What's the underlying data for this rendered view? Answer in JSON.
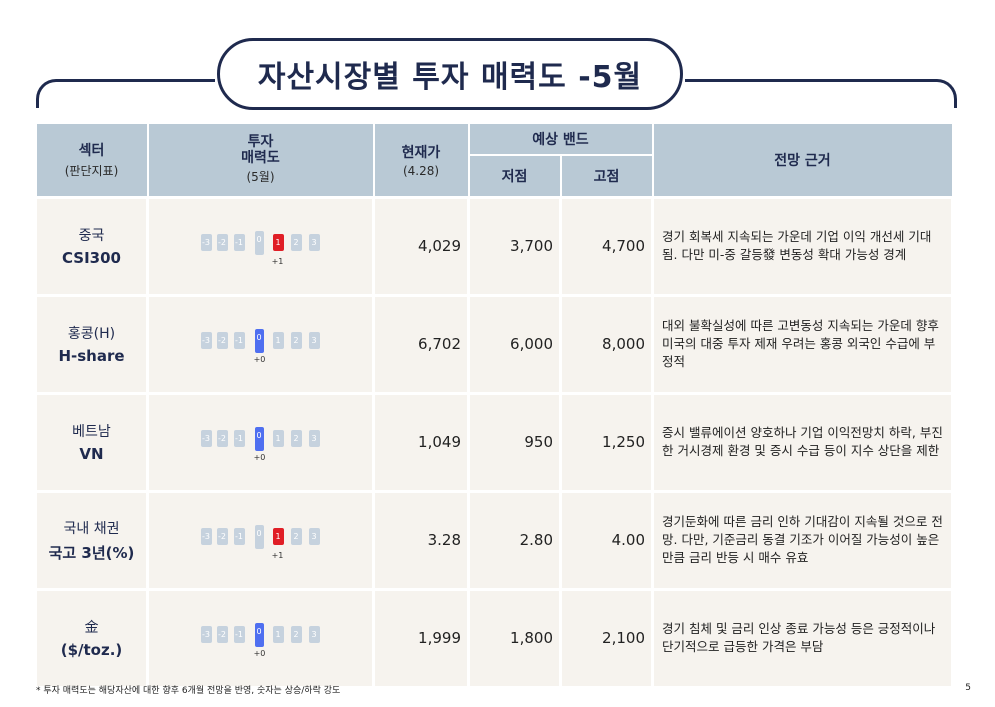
{
  "title": "자산시장별 투자 매력도 -5월",
  "header": {
    "sector": "섹터",
    "sector_sub": "(판단지표)",
    "attract": "투자\n매력도",
    "attract_sub": "(5월)",
    "price": "현재가",
    "price_sub": "(4.28)",
    "band": "예상 밴드",
    "low": "저점",
    "high": "고점",
    "basis": "전망 근거"
  },
  "scale_labels": [
    "-3",
    "-2",
    "-1",
    "0",
    "1",
    "2",
    "3"
  ],
  "rows": [
    {
      "asset_line1": "중국",
      "asset_line2": "CSI300",
      "score": 1,
      "score_label": "+1",
      "price": "4,029",
      "low": "3,700",
      "high": "4,700",
      "basis": "경기 회복세 지속되는 가운데 기업 이익 개선세 기대됨. 다만 미-중 갈등發 변동성 확대 가능성 경계"
    },
    {
      "asset_line1": "홍콩(H)",
      "asset_line2": "H-share",
      "score": 0,
      "score_label": "+0",
      "price": "6,702",
      "low": "6,000",
      "high": "8,000",
      "basis": "대외 불확실성에 따른 고변동성 지속되는 가운데 향후 미국의 대중 투자 제재 우려는 홍콩 외국인 수급에 부정적"
    },
    {
      "asset_line1": "베트남",
      "asset_line2": "VN",
      "score": 0,
      "score_label": "+0",
      "price": "1,049",
      "low": "950",
      "high": "1,250",
      "basis": "증시 밸류에이션 양호하나 기업 이익전망치 하락, 부진한 거시경제 환경 및 증시 수급 등이 지수 상단을 제한"
    },
    {
      "asset_line1": "국내 채권",
      "asset_line2": "국고 3년(%)",
      "score": 1,
      "score_label": "+1",
      "price": "3.28",
      "low": "2.80",
      "high": "4.00",
      "basis": "경기둔화에 따른 금리 인하 기대감이 지속될 것으로 전망. 다만, 기준금리 동결 기조가 이어질 가능성이 높은 만큼 금리 반등 시 매수 유효"
    },
    {
      "asset_line1": "金",
      "asset_line2": "($/toz.)",
      "score": 0,
      "score_label": "+0",
      "price": "1,999",
      "low": "1,800",
      "high": "2,100",
      "basis": "경기 침체 및 금리 인상 종료 가능성 등은 긍정적이나 단기적으로 급등한 가격은 부담"
    }
  ],
  "footnote": "* 투자 매력도는 해당자산에 대한 향후 6개월 전망을 반영, 숫자는 상승/하락 강도",
  "page_number": "5",
  "colors": {
    "navy": "#1f2a4e",
    "header_bg": "#b9c9d5",
    "row_bg": "#f6f3ee",
    "scale_inactive": "#c6d2de",
    "scale_zero": "#4f6ff0",
    "scale_positive": "#e01e26"
  }
}
